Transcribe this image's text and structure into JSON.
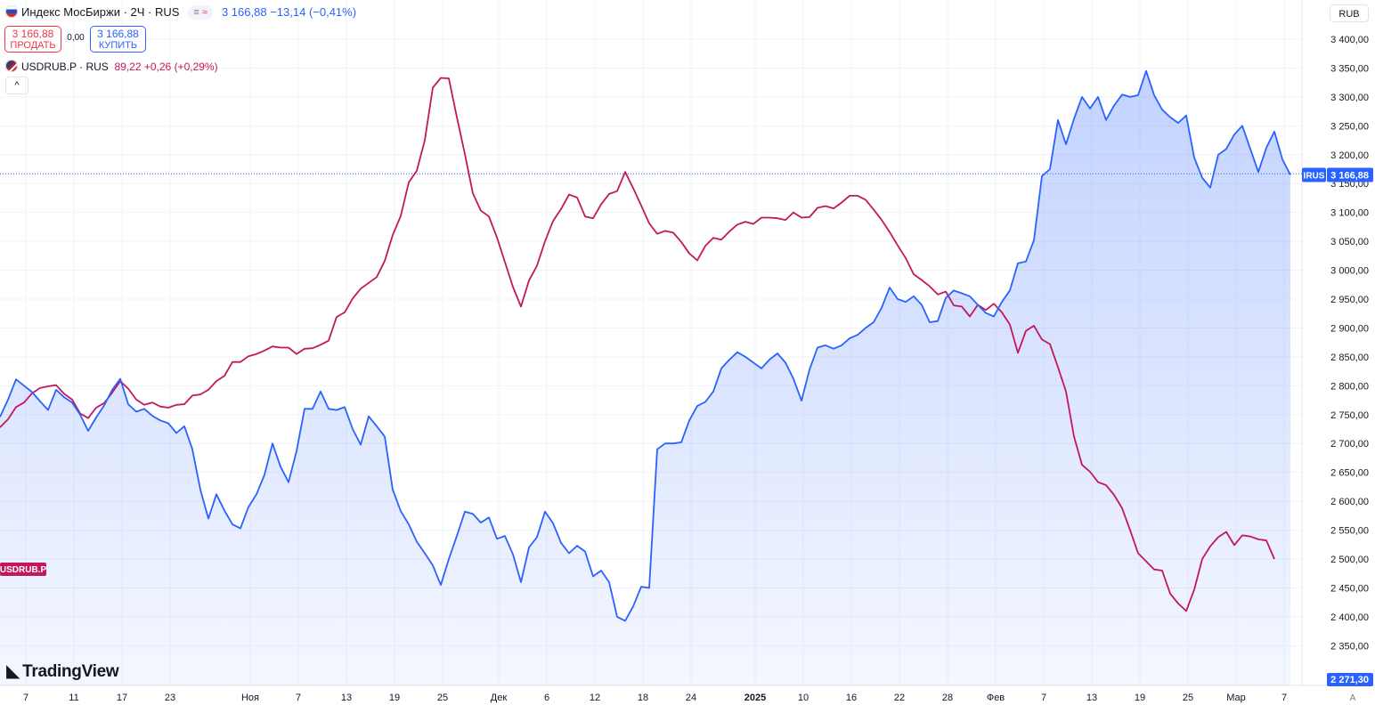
{
  "header": {
    "symbol_title": "Индекс МосБиржи · 2Ч · RUS",
    "pill_left": "≡",
    "pill_right": "≈",
    "last_price": "3 166,88",
    "change": "−13,14",
    "change_pct": "(−0,41%)"
  },
  "trade": {
    "sell_price": "3 166,88",
    "sell_label": "ПРОДАТЬ",
    "spread": "0,00",
    "buy_price": "3 166,88",
    "buy_label": "КУПИТЬ"
  },
  "compare": {
    "symbol": "USDRUB.P · RUS",
    "price": "89,22",
    "change": "+0,26",
    "change_pct": "(+0,29%)"
  },
  "currency_button": "RUB",
  "collapse_icon": "chevron-up-icon",
  "logo_text": "TradingView",
  "auto_scale_label": "A",
  "colors": {
    "main_line": "#2962ff",
    "compare_line": "#c2185b",
    "sell": "#f23645",
    "buy": "#2962ff"
  },
  "chart_data": {
    "type": "area",
    "y_axis": {
      "range": [
        2300,
        3400
      ],
      "ticks": [
        "2 350,00",
        "2 400,00",
        "2 450,00",
        "2 500,00",
        "2 550,00",
        "2 600,00",
        "2 650,00",
        "2 700,00",
        "2 750,00",
        "2 800,00",
        "2 850,00",
        "2 900,00",
        "2 950,00",
        "3 000,00",
        "3 050,00",
        "3 100,00",
        "3 150,00",
        "3 200,00",
        "3 250,00",
        "3 300,00",
        "3 350,00",
        "3 400,00"
      ]
    },
    "x_axis": {
      "labels": [
        {
          "label": "7",
          "slot": 3,
          "bold": false
        },
        {
          "label": "11",
          "slot": 9,
          "bold": false
        },
        {
          "label": "17",
          "slot": 15,
          "bold": false
        },
        {
          "label": "23",
          "slot": 21,
          "bold": false
        },
        {
          "label": "Ноя",
          "slot": 31,
          "bold": false
        },
        {
          "label": "7",
          "slot": 37,
          "bold": false
        },
        {
          "label": "13",
          "slot": 43,
          "bold": false
        },
        {
          "label": "19",
          "slot": 49,
          "bold": false
        },
        {
          "label": "25",
          "slot": 55,
          "bold": false
        },
        {
          "label": "Дек",
          "slot": 62,
          "bold": false
        },
        {
          "label": "6",
          "slot": 68,
          "bold": false
        },
        {
          "label": "12",
          "slot": 74,
          "bold": false
        },
        {
          "label": "18",
          "slot": 80,
          "bold": false
        },
        {
          "label": "24",
          "slot": 86,
          "bold": false
        },
        {
          "label": "2025",
          "slot": 94,
          "bold": true
        },
        {
          "label": "10",
          "slot": 100,
          "bold": false
        },
        {
          "label": "16",
          "slot": 106,
          "bold": false
        },
        {
          "label": "22",
          "slot": 112,
          "bold": false
        },
        {
          "label": "28",
          "slot": 118,
          "bold": false
        },
        {
          "label": "Фев",
          "slot": 124,
          "bold": false
        },
        {
          "label": "7",
          "slot": 130,
          "bold": false
        },
        {
          "label": "13",
          "slot": 136,
          "bold": false
        },
        {
          "label": "19",
          "slot": 142,
          "bold": false
        },
        {
          "label": "25",
          "slot": 148,
          "bold": false
        },
        {
          "label": "Мар",
          "slot": 154,
          "bold": false
        },
        {
          "label": "7",
          "slot": 160,
          "bold": false
        }
      ]
    },
    "grid": true,
    "current_value_line": 3166.88,
    "series": [
      {
        "name": "IRUS",
        "role": "main",
        "axis_badge": "3 166,88",
        "values": [
          2746,
          2776,
          2811,
          2800,
          2789,
          2773,
          2758,
          2793,
          2780,
          2771,
          2750,
          2722,
          2745,
          2766,
          2793,
          2812,
          2768,
          2755,
          2760,
          2748,
          2740,
          2735,
          2718,
          2730,
          2690,
          2620,
          2570,
          2612,
          2584,
          2560,
          2553,
          2590,
          2612,
          2646,
          2700,
          2660,
          2633,
          2687,
          2760,
          2760,
          2790,
          2760,
          2758,
          2763,
          2725,
          2698,
          2747,
          2730,
          2712,
          2620,
          2583,
          2560,
          2530,
          2510,
          2489,
          2455,
          2500,
          2540,
          2582,
          2578,
          2563,
          2572,
          2535,
          2540,
          2508,
          2460,
          2520,
          2538,
          2582,
          2562,
          2528,
          2510,
          2523,
          2513,
          2470,
          2480,
          2460,
          2400,
          2393,
          2418,
          2452,
          2450,
          2690,
          2700,
          2700,
          2702,
          2740,
          2765,
          2772,
          2790,
          2830,
          2845,
          2858,
          2850,
          2840,
          2830,
          2845,
          2856,
          2840,
          2812,
          2774,
          2828,
          2866,
          2870,
          2864,
          2870,
          2882,
          2888,
          2900,
          2910,
          2935,
          2970,
          2950,
          2945,
          2955,
          2940,
          2910,
          2912,
          2952,
          2965,
          2960,
          2955,
          2940,
          2926,
          2920,
          2945,
          2965,
          3012,
          3015,
          3052,
          3163,
          3175,
          3260,
          3218,
          3262,
          3300,
          3280,
          3300,
          3260,
          3285,
          3304,
          3300,
          3303,
          3345,
          3303,
          3278,
          3265,
          3255,
          3268,
          3195,
          3160,
          3143,
          3200,
          3210,
          3235,
          3250,
          3210,
          3170,
          3212,
          3240,
          3192,
          3165
        ]
      },
      {
        "name": "USDRUB.P",
        "role": "compare",
        "axis_badge": "USDRUB.P",
        "values": [
          2728,
          2742,
          2763,
          2771,
          2787,
          2796,
          2799,
          2801,
          2786,
          2776,
          2752,
          2744,
          2762,
          2770,
          2788,
          2808,
          2795,
          2776,
          2767,
          2771,
          2764,
          2762,
          2767,
          2768,
          2783,
          2785,
          2793,
          2808,
          2817,
          2841,
          2841,
          2851,
          2855,
          2861,
          2868,
          2866,
          2866,
          2855,
          2864,
          2865,
          2871,
          2878,
          2919,
          2927,
          2951,
          2968,
          2978,
          2988,
          3016,
          3061,
          3094,
          3152,
          3172,
          3225,
          3316,
          3333,
          3332,
          3265,
          3201,
          3133,
          3103,
          3093,
          3057,
          3014,
          2971,
          2937,
          2982,
          3008,
          3050,
          3085,
          3106,
          3131,
          3126,
          3093,
          3090,
          3114,
          3132,
          3137,
          3170,
          3142,
          3112,
          3081,
          3063,
          3068,
          3065,
          3049,
          3029,
          3017,
          3042,
          3056,
          3053,
          3067,
          3079,
          3084,
          3080,
          3091,
          3091,
          3090,
          3087,
          3100,
          3091,
          3092,
          3108,
          3111,
          3107,
          3117,
          3129,
          3129,
          3122,
          3105,
          3087,
          3066,
          3043,
          3021,
          2993,
          2983,
          2972,
          2958,
          2963,
          2939,
          2937,
          2920,
          2940,
          2931,
          2942,
          2927,
          2906,
          2857,
          2895,
          2904,
          2880,
          2872,
          2832,
          2790,
          2712,
          2663,
          2651,
          2633,
          2628,
          2611,
          2588,
          2550,
          2510,
          2496,
          2482,
          2480,
          2440,
          2423,
          2410,
          2447,
          2500,
          2522,
          2538,
          2547,
          2524,
          2541,
          2539,
          2534,
          2532,
          2500
        ]
      }
    ]
  }
}
